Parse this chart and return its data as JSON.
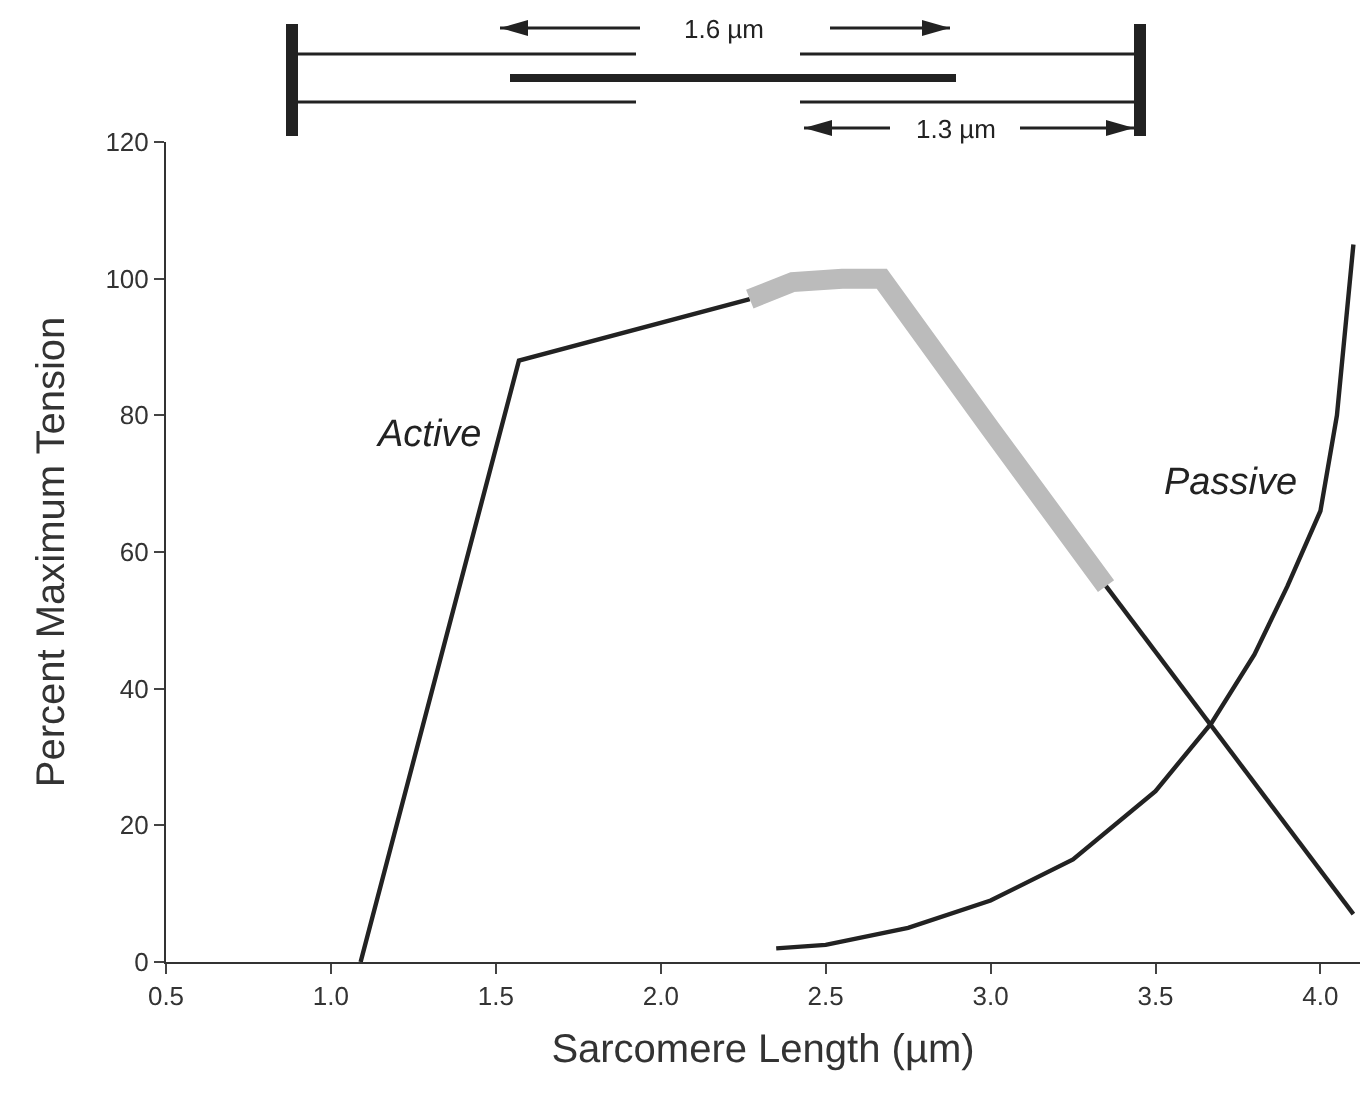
{
  "chart_data": {
    "type": "line",
    "xlabel": "Sarcomere Length (µm)",
    "ylabel": "Percent Maximum Tension",
    "annotations": [
      "1.6 µm",
      "1.3 µm"
    ],
    "xlim": [
      0.5,
      4.12
    ],
    "ylim": [
      0,
      120
    ],
    "xticks": [
      {
        "value": 0.5,
        "label": "0.5"
      },
      {
        "value": 1,
        "label": "1.0"
      },
      {
        "value": 1.5,
        "label": "1.5"
      },
      {
        "value": 2,
        "label": "2.0"
      },
      {
        "value": 2.5,
        "label": "2.5"
      },
      {
        "value": 3,
        "label": "3.0"
      },
      {
        "value": 3.5,
        "label": "3.5"
      },
      {
        "value": 4,
        "label": "4.0"
      }
    ],
    "yticks": [
      0,
      20,
      40,
      60,
      80,
      100,
      120
    ],
    "grid": false,
    "legend": false,
    "marker": "none",
    "line_style": "solid",
    "series": [
      {
        "name": "Active",
        "color": "#222222",
        "x": [
          1.09,
          1.57,
          2.27
        ],
        "values": [
          0,
          88,
          97
        ]
      },
      {
        "color": "#bbbbbb",
        "x": [
          2.27,
          2.4,
          2.55,
          2.67,
          3.0,
          3.35
        ],
        "values": [
          97,
          99.5,
          100,
          100,
          78,
          55
        ]
      },
      {
        "color": "#222222",
        "x": [
          3.35,
          4.1
        ],
        "values": [
          55,
          7
        ]
      },
      {
        "name": "Passive",
        "color": "#222222",
        "x": [
          2.35,
          2.5,
          2.75,
          3.0,
          3.25,
          3.5,
          3.67,
          3.8,
          3.9,
          4.0,
          4.05,
          4.1
        ],
        "values": [
          2,
          2.5,
          5,
          9,
          15,
          25,
          35,
          45,
          55,
          66,
          80,
          105
        ]
      }
    ]
  }
}
